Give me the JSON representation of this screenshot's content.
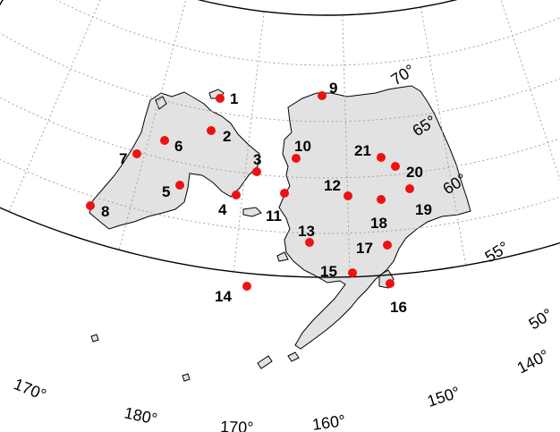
{
  "map": {
    "projection": "conic",
    "colors": {
      "land": "#e2e2e2",
      "coast": "#000000",
      "graticule": "#9a9a9a",
      "frame": "#000000",
      "site": "#ee1111"
    },
    "latitude_labels": [
      {
        "text": "70°"
      },
      {
        "text": "65°"
      },
      {
        "text": "60°"
      },
      {
        "text": "55°"
      },
      {
        "text": "50°"
      }
    ],
    "longitude_labels": [
      {
        "text": "170°"
      },
      {
        "text": "180°"
      },
      {
        "text": "170°"
      },
      {
        "text": "160°"
      },
      {
        "text": "150°"
      },
      {
        "text": "140°"
      }
    ],
    "sites": [
      {
        "label": "1"
      },
      {
        "label": "2"
      },
      {
        "label": "3"
      },
      {
        "label": "4"
      },
      {
        "label": "5"
      },
      {
        "label": "6"
      },
      {
        "label": "7"
      },
      {
        "label": "8"
      },
      {
        "label": "9"
      },
      {
        "label": "10"
      },
      {
        "label": "11"
      },
      {
        "label": "12"
      },
      {
        "label": "13"
      },
      {
        "label": "14"
      },
      {
        "label": "15"
      },
      {
        "label": "16"
      },
      {
        "label": "17"
      },
      {
        "label": "18"
      },
      {
        "label": "19"
      },
      {
        "label": "20"
      },
      {
        "label": "21"
      }
    ]
  }
}
